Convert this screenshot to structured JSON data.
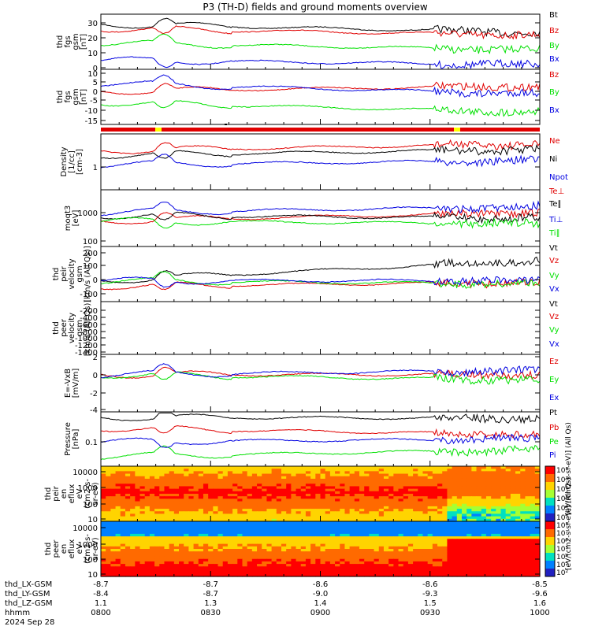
{
  "title": "P3 (TH-D) fields and ground moments overview",
  "date": "2024 Sep 28",
  "colors": {
    "black": "#000000",
    "red": "#e00000",
    "green": "#00e000",
    "blue": "#0000e0",
    "yellow": "#ffff00"
  },
  "time_ticks": [
    "0800",
    "0830",
    "0900",
    "0930",
    "1000"
  ],
  "ephemeris": {
    "labels": [
      "thd_LX-GSM",
      "thd_LY-GSM",
      "thd_LZ-GSM",
      "hhmm"
    ],
    "rows": [
      [
        "-8.7",
        "-8.7",
        "-8.6",
        "-8.6",
        "-8.5"
      ],
      [
        "-8.4",
        "-8.7",
        "-9.0",
        "-9.3",
        "-9.6"
      ],
      [
        "1.1",
        "1.3",
        "1.4",
        "1.5",
        "1.6"
      ]
    ]
  },
  "chart_data": [
    {
      "type": "line",
      "ylabel": "thd\nfgs\ngsm\n[nT]",
      "yticks": [
        "30",
        "20",
        "10",
        "0"
      ],
      "ylim": [
        0,
        36
      ],
      "series": [
        {
          "name": "Bt",
          "color": "black"
        },
        {
          "name": "Bz",
          "color": "red"
        },
        {
          "name": "By",
          "color": "green"
        },
        {
          "name": "Bx",
          "color": "blue"
        }
      ]
    },
    {
      "type": "line",
      "ylabel": "thd\nfgs\ngsm\n[nT]",
      "yticks": [
        "10",
        "5",
        "0",
        "-5",
        "-10",
        "-15"
      ],
      "ylim": [
        -20,
        11
      ],
      "series": [
        {
          "name": "Bz",
          "color": "red"
        },
        {
          "name": "By",
          "color": "green"
        },
        {
          "name": "Bx",
          "color": "blue"
        }
      ]
    },
    {
      "type": "line",
      "ylabel": "Density\n[1/cc]\n[cm-3]",
      "yticks": [
        "1"
      ],
      "scale": "log",
      "series": [
        {
          "name": "Ne",
          "color": "red"
        },
        {
          "name": "Ni",
          "color": "black"
        },
        {
          "name": "Npot",
          "color": "blue"
        }
      ]
    },
    {
      "type": "line",
      "ylabel": "moqt3\n[eV]",
      "yticks": [
        "1000",
        "100"
      ],
      "scale": "log",
      "series": [
        {
          "name": "Te⊥",
          "color": "red"
        },
        {
          "name": "Te∥",
          "color": "black"
        },
        {
          "name": "Ti⊥",
          "color": "blue"
        },
        {
          "name": "Ti∥",
          "color": "green"
        }
      ]
    },
    {
      "type": "line",
      "ylabel": "thd\npeir\nvelocity\ngsm\n[km/s (All Qs)]",
      "yticks": [
        "200",
        "100",
        "0",
        "-100"
      ],
      "ylim": [
        -150,
        210
      ],
      "series": [
        {
          "name": "Vt",
          "color": "black"
        },
        {
          "name": "Vz",
          "color": "red"
        },
        {
          "name": "Vy",
          "color": "green"
        },
        {
          "name": "Vx",
          "color": "blue"
        }
      ]
    },
    {
      "type": "line",
      "ylabel": "thd\npeer\nvelocity\ngsm\n[km/s (All Qs)]",
      "yticks": [
        "-200",
        "-400",
        "-600",
        "-800",
        "-1000",
        "-1200",
        "-1400"
      ],
      "ylim": [
        -1500,
        0
      ],
      "series": [
        {
          "name": "Vt",
          "color": "black"
        },
        {
          "name": "Vz",
          "color": "red"
        },
        {
          "name": "Vy",
          "color": "green"
        },
        {
          "name": "Vx",
          "color": "blue"
        }
      ]
    },
    {
      "type": "line",
      "ylabel": "E=-VxB\n[mV/m]",
      "yticks": [
        "2",
        "0",
        "-2",
        "-4"
      ],
      "ylim": [
        -4.8,
        3
      ],
      "series": [
        {
          "name": "Ez",
          "color": "red"
        },
        {
          "name": "Ey",
          "color": "green"
        },
        {
          "name": "Ex",
          "color": "blue"
        }
      ]
    },
    {
      "type": "line",
      "ylabel": "Pressure\n[nPa]",
      "yticks": [
        "0.1"
      ],
      "scale": "log",
      "series": [
        {
          "name": "Pt",
          "color": "black"
        },
        {
          "name": "Pb",
          "color": "red"
        },
        {
          "name": "Pe",
          "color": "green"
        },
        {
          "name": "Pi",
          "color": "blue"
        }
      ]
    },
    {
      "type": "heatmap",
      "ylabel": "thd\npeir\nen\neflux\neV\n(cm2-s-\nsr-eV)",
      "yticks": [
        "10000",
        "1000",
        "100",
        "10"
      ],
      "scale": "log",
      "colorbar": {
        "ticks": [
          "10⁸",
          "10⁷",
          "10⁶",
          "10⁵",
          "10⁴",
          "10³"
        ],
        "label": "[eV/(cm2-s-sr-eV)] (All Qs)"
      }
    },
    {
      "type": "heatmap",
      "ylabel": "thd\npeer\nen\neflux\neV\n(cm2-s-\nsr-eV)",
      "yticks": [
        "10000",
        "1000",
        "100",
        "10"
      ],
      "scale": "log",
      "colorbar": {
        "ticks": [
          "10⁸",
          "10⁷",
          "10⁶",
          "10⁵",
          "10⁴",
          "10³",
          "10²"
        ],
        "label": "[eV/(cm2-s-sr-eV)] (All Qs)"
      }
    }
  ]
}
